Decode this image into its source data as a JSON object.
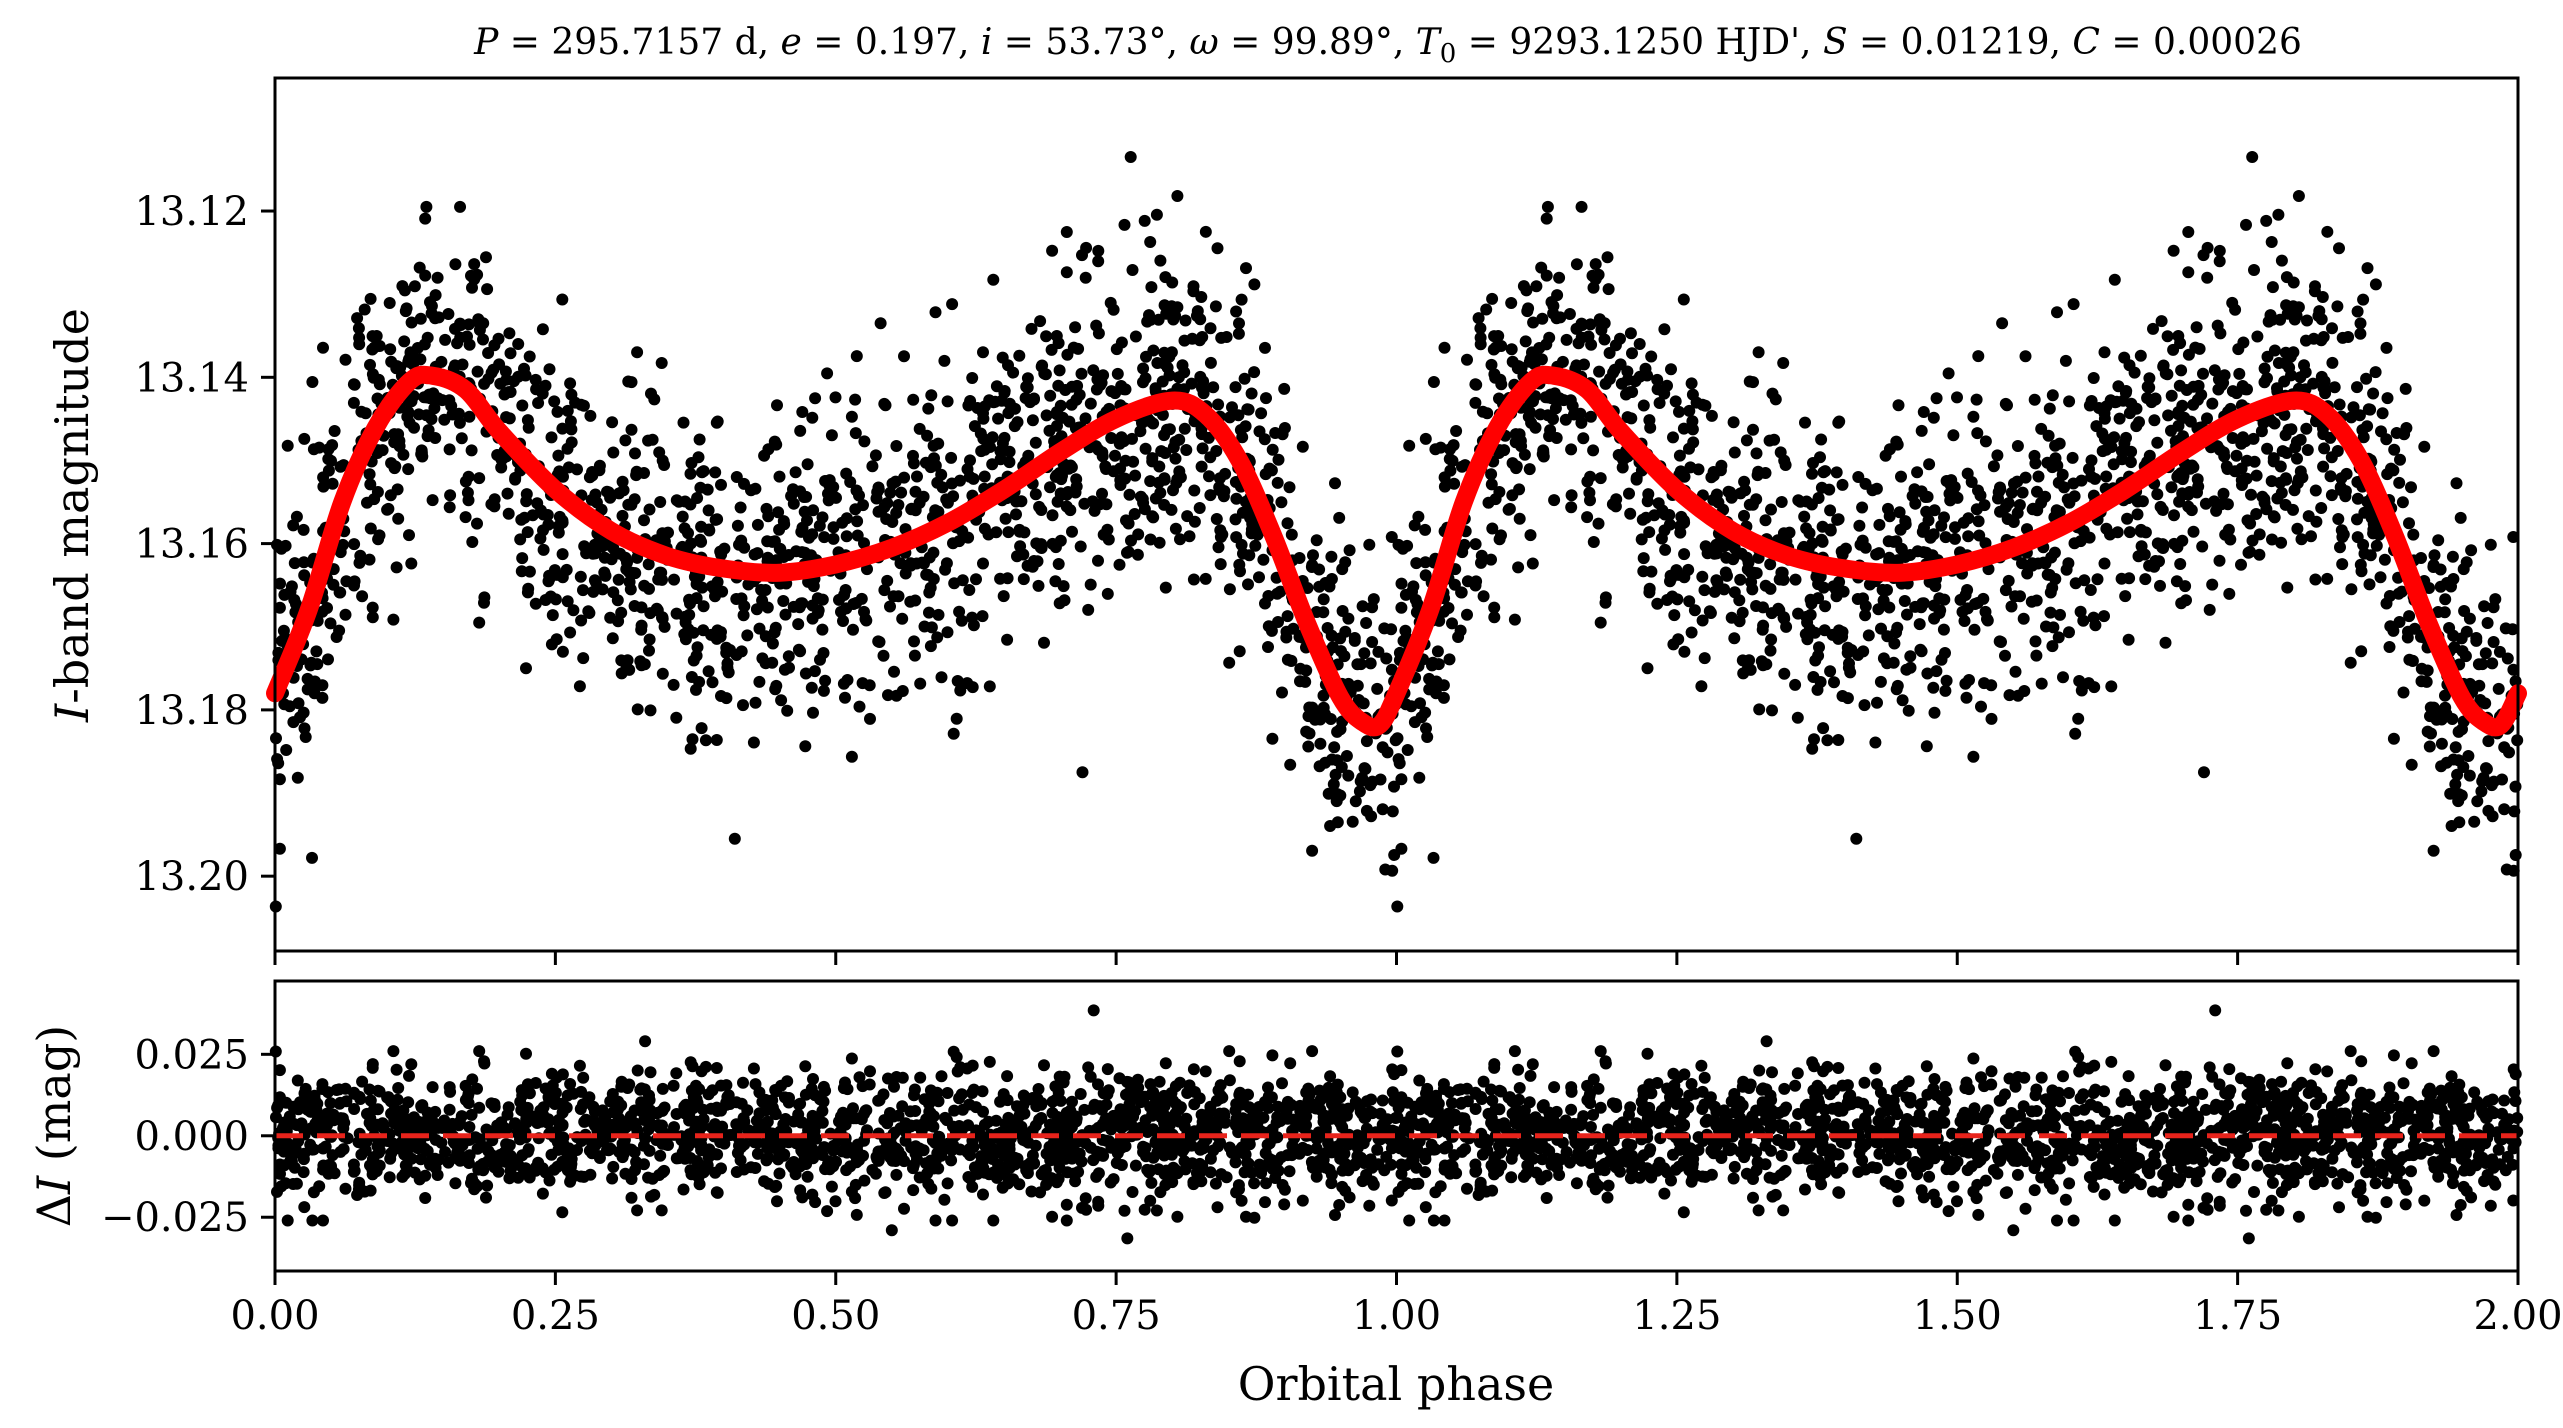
{
  "title": "P = 295.7157 d, e = 0.197, i = 53.73°, ω = 99.89°, T0 = 9293.1250 HJD', S = 0.01219, C = 0.00026",
  "title_parts": {
    "p_sym": "P",
    "p_val": " = 295.7157 d, ",
    "e_sym": "e",
    "e_val": " = 0.197, ",
    "i_sym": "i",
    "i_val": " = 53.73°, ",
    "w_sym": "ω",
    "w_val": " = 99.89°, ",
    "t_sym": "T",
    "t_sub": "0",
    "t_val": " = 9293.1250 HJD', ",
    "s_sym": "S",
    "s_val": " = 0.01219, ",
    "c_sym": "C",
    "c_val": " = 0.00026"
  },
  "colors": {
    "points": "#000000",
    "model": "#ff0000",
    "zero_line": "#e8231b"
  },
  "chart_data": [
    {
      "panel": "top",
      "type": "scatter",
      "ylabel": "I-band magnitude",
      "ylabel_parts": {
        "sym": "I",
        "rest": "-band magnitude"
      },
      "xlabel": "",
      "xlim": [
        0.0,
        2.0
      ],
      "ylim": [
        13.209,
        13.104
      ],
      "y_inverted": true,
      "yticks": [
        13.12,
        13.14,
        13.16,
        13.18,
        13.2
      ],
      "ytick_labels": [
        "13.12",
        "13.14",
        "13.16",
        "13.18",
        "13.20"
      ],
      "model_curve": {
        "phase": [
          0.0,
          0.03,
          0.06,
          0.09,
          0.12,
          0.14,
          0.17,
          0.2,
          0.25,
          0.3,
          0.35,
          0.4,
          0.45,
          0.5,
          0.55,
          0.6,
          0.65,
          0.7,
          0.75,
          0.8,
          0.83,
          0.86,
          0.89,
          0.92,
          0.95,
          0.97,
          0.985,
          1.0,
          1.03,
          1.06,
          1.09,
          1.12,
          1.14,
          1.17,
          1.2,
          1.25,
          1.3,
          1.35,
          1.4,
          1.45,
          1.5,
          1.55,
          1.6,
          1.65,
          1.7,
          1.75,
          1.8,
          1.83,
          1.86,
          1.89,
          1.92,
          1.95,
          1.97,
          1.985,
          2.0
        ],
        "magnitude": [
          13.178,
          13.168,
          13.155,
          13.146,
          13.1405,
          13.1398,
          13.1415,
          13.1465,
          13.1535,
          13.1585,
          13.1615,
          13.163,
          13.1635,
          13.1625,
          13.1605,
          13.1575,
          13.1535,
          13.149,
          13.145,
          13.1428,
          13.1445,
          13.15,
          13.159,
          13.1695,
          13.1785,
          13.1815,
          13.1818,
          13.178,
          13.168,
          13.155,
          13.146,
          13.1405,
          13.1398,
          13.1415,
          13.1465,
          13.1535,
          13.1585,
          13.1615,
          13.163,
          13.1635,
          13.1625,
          13.1605,
          13.1575,
          13.1535,
          13.149,
          13.145,
          13.1428,
          13.1445,
          13.15,
          13.159,
          13.1695,
          13.1785,
          13.1815,
          13.1818,
          13.178
        ]
      },
      "scatter_scale": 0.0095,
      "outliers": [
        {
          "phase": 0.763,
          "magnitude": 13.1135
        },
        {
          "phase": 1.763,
          "magnitude": 13.1135
        },
        {
          "phase": 0.135,
          "magnitude": 13.1195
        },
        {
          "phase": 1.135,
          "magnitude": 13.1195
        },
        {
          "phase": 0.165,
          "magnitude": 13.1195
        },
        {
          "phase": 1.165,
          "magnitude": 13.1195
        },
        {
          "phase": 0.83,
          "magnitude": 13.1225
        },
        {
          "phase": 1.83,
          "magnitude": 13.1225
        },
        {
          "phase": 0.033,
          "magnitude": 13.1978
        },
        {
          "phase": 1.033,
          "magnitude": 13.1978
        },
        {
          "phase": 0.41,
          "magnitude": 13.1955
        },
        {
          "phase": 1.41,
          "magnitude": 13.1955
        },
        {
          "phase": 0.99,
          "magnitude": 13.1992
        },
        {
          "phase": 1.99,
          "magnitude": 13.1992
        },
        {
          "phase": 0.72,
          "magnitude": 13.1875
        },
        {
          "phase": 1.72,
          "magnitude": 13.1875
        },
        {
          "phase": 0.54,
          "magnitude": 13.1335
        },
        {
          "phase": 1.54,
          "magnitude": 13.1335
        },
        {
          "phase": 0.315,
          "magnitude": 13.1405
        },
        {
          "phase": 1.315,
          "magnitude": 13.1405
        }
      ]
    },
    {
      "panel": "bottom",
      "type": "scatter",
      "ylabel": "ΔI (mag)",
      "ylabel_parts": {
        "delta": "Δ",
        "sym": "I",
        "rest": " (mag)"
      },
      "xlabel": "Orbital phase",
      "xlim": [
        0.0,
        2.0
      ],
      "ylim": [
        -0.0415,
        0.0475
      ],
      "y_inverted": true,
      "yticks": [
        -0.025,
        0.0,
        0.025
      ],
      "ytick_labels": [
        "−0.025",
        "0.000",
        "0.025"
      ],
      "xticks": [
        0.0,
        0.25,
        0.5,
        0.75,
        1.0,
        1.25,
        1.5,
        1.75,
        2.0
      ],
      "xtick_labels": [
        "0.00",
        "0.25",
        "0.50",
        "0.75",
        "1.00",
        "1.25",
        "1.50",
        "1.75",
        "2.00"
      ],
      "zero_line": 0.0,
      "scatter_scale": 0.0095,
      "outliers": [
        {
          "phase": 0.76,
          "magnitude": -0.0315
        },
        {
          "phase": 1.76,
          "magnitude": -0.0315
        },
        {
          "phase": 0.73,
          "magnitude": 0.0385
        },
        {
          "phase": 1.73,
          "magnitude": 0.0385
        },
        {
          "phase": 0.55,
          "magnitude": -0.029
        },
        {
          "phase": 1.55,
          "magnitude": -0.029
        },
        {
          "phase": 0.33,
          "magnitude": 0.029
        },
        {
          "phase": 1.33,
          "magnitude": 0.029
        }
      ]
    }
  ]
}
